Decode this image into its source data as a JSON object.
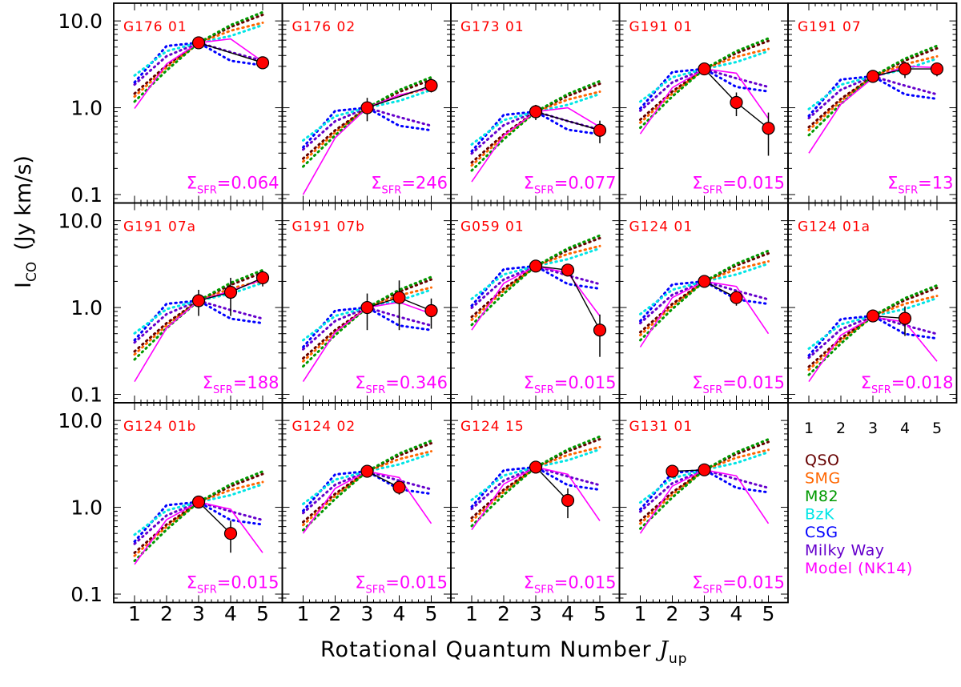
{
  "figure": {
    "ylabel_main": "I",
    "ylabel_sub": "CO",
    "ylabel_unit": "(Jy km/s)",
    "xlabel": "Rotational Quantum Number ",
    "xlabel_sym": "J",
    "xlabel_sub": "up"
  },
  "colors": {
    "panel_label": "#ff0000",
    "sfr_text": "#ff00ff",
    "points": "#ff0000",
    "data_line": "#000000",
    "model": "#ff00ff"
  },
  "sfr_symbol": "Σ",
  "sfr_sub": "SFR",
  "legend": {
    "ticks": [
      "1",
      "2",
      "3",
      "4",
      "5"
    ],
    "items": [
      {
        "label": "QSO",
        "color": "#660000"
      },
      {
        "label": "SMG",
        "color": "#ff6600"
      },
      {
        "label": "M82",
        "color": "#009900"
      },
      {
        "label": "BzK",
        "color": "#00e5e5"
      },
      {
        "label": "CSG",
        "color": "#0000ff"
      },
      {
        "label": "Milky Way",
        "color": "#6600cc"
      },
      {
        "label": "Model (NK14)",
        "color": "#ff00ff"
      }
    ]
  },
  "chart_data": {
    "type": "line",
    "title": "",
    "xlabel": "Rotational Quantum Number J_up",
    "ylabel": "I_CO (Jy km/s)",
    "xscale": "linear",
    "yscale": "log",
    "xlim": [
      0.5,
      5.5
    ],
    "ylim": [
      0.08,
      16
    ],
    "xticks": [
      "1",
      "2",
      "3",
      "4",
      "5"
    ],
    "yticks": [
      "0.1",
      "1.0",
      "10.0"
    ],
    "template_shapes": {
      "QSO": [
        0.26,
        0.55,
        1.0,
        1.52,
        2.1
      ],
      "SMG": [
        0.24,
        0.52,
        1.0,
        1.38,
        1.7
      ],
      "M82": [
        0.21,
        0.48,
        1.0,
        1.6,
        2.25
      ],
      "BzK": [
        0.42,
        0.8,
        1.0,
        1.2,
        1.6
      ],
      "CSG": [
        0.35,
        0.92,
        1.0,
        0.62,
        0.55
      ],
      "Milky Way": [
        0.33,
        0.7,
        1.0,
        0.78,
        0.62
      ]
    },
    "panels": [
      {
        "label": "G176 01",
        "sfr": "=0.064",
        "norm": 5.6,
        "data": [
          [
            3,
            5.6
          ],
          [
            5,
            3.3
          ]
        ],
        "errors": [
          0,
          0
        ],
        "model": [
          0.98,
          3.2,
          5.6,
          6.2,
          3.4
        ]
      },
      {
        "label": "G176 02",
        "sfr": "=246",
        "norm": 1.0,
        "data": [
          [
            3,
            1.0
          ],
          [
            5,
            1.8
          ]
        ],
        "errors": [
          0.3,
          0.3
        ],
        "model": [
          0.1,
          0.45,
          1.0,
          1.4,
          1.7
        ]
      },
      {
        "label": "G173 01",
        "sfr": "=0.077",
        "norm": 0.9,
        "data": [
          [
            3,
            0.9
          ],
          [
            5,
            0.55
          ]
        ],
        "errors": [
          0.18,
          0.16
        ],
        "model": [
          0.14,
          0.48,
          0.9,
          1.0,
          0.6
        ]
      },
      {
        "label": "G191 01",
        "sfr": "=0.015",
        "norm": 2.8,
        "data": [
          [
            3,
            2.8
          ],
          [
            4,
            1.15
          ],
          [
            5,
            0.58
          ]
        ],
        "errors": [
          0.25,
          0.35,
          0.3
        ],
        "model": [
          0.5,
          1.7,
          2.8,
          2.5,
          0.75
        ]
      },
      {
        "label": "G191 07",
        "sfr": "=13",
        "norm": 2.3,
        "data": [
          [
            3,
            2.3
          ],
          [
            4,
            2.8
          ],
          [
            5,
            2.8
          ]
        ],
        "errors": [
          0.2,
          0.6,
          0.5
        ],
        "model": [
          0.3,
          1.1,
          2.2,
          3.0,
          2.9
        ]
      },
      {
        "label": "G191 07a",
        "sfr": "=188",
        "norm": 1.2,
        "data": [
          [
            3,
            1.2
          ],
          [
            4,
            1.5
          ],
          [
            5,
            2.2
          ]
        ],
        "errors": [
          0.4,
          0.7,
          0.45
        ],
        "model": [
          0.14,
          0.58,
          1.2,
          1.55,
          2.1
        ]
      },
      {
        "label": "G191 07b",
        "sfr": "=0.346",
        "norm": 1.0,
        "data": [
          [
            3,
            1.0
          ],
          [
            4,
            1.3
          ],
          [
            5,
            0.92
          ]
        ],
        "errors": [
          0.45,
          0.75,
          0.35
        ],
        "model": [
          0.14,
          0.52,
          1.0,
          1.15,
          0.85
        ]
      },
      {
        "label": "G059 01",
        "sfr": "=0.015",
        "norm": 3.0,
        "data": [
          [
            3,
            3.0
          ],
          [
            4,
            2.7
          ],
          [
            5,
            0.55
          ]
        ],
        "errors": [
          0.35,
          0.25,
          0.28
        ],
        "model": [
          0.55,
          1.9,
          3.0,
          2.5,
          0.8
        ]
      },
      {
        "label": "G124 01",
        "sfr": "=0.015",
        "norm": 2.0,
        "data": [
          [
            3,
            2.0
          ],
          [
            4,
            1.3
          ]
        ],
        "errors": [
          0.15,
          0.25
        ],
        "model": [
          0.35,
          1.3,
          2.0,
          1.75,
          0.5
        ]
      },
      {
        "label": "G124 01a",
        "sfr": "=0.018",
        "norm": 0.8,
        "data": [
          [
            3,
            0.8
          ],
          [
            4,
            0.75
          ]
        ],
        "errors": [
          0.1,
          0.28
        ],
        "model": [
          0.14,
          0.48,
          0.78,
          0.68,
          0.24
        ]
      },
      {
        "label": "G124 01b",
        "sfr": "=0.015",
        "norm": 1.15,
        "data": [
          [
            3,
            1.15
          ],
          [
            4,
            0.5
          ]
        ],
        "errors": [
          0.12,
          0.2
        ],
        "model": [
          0.22,
          0.72,
          1.15,
          0.95,
          0.3
        ]
      },
      {
        "label": "G124 02",
        "sfr": "=0.015",
        "norm": 2.6,
        "data": [
          [
            3,
            2.6
          ],
          [
            4,
            1.7
          ]
        ],
        "errors": [
          0.2,
          0.3
        ],
        "model": [
          0.5,
          1.65,
          2.6,
          2.2,
          0.65
        ]
      },
      {
        "label": "G124 15",
        "sfr": "=0.015",
        "norm": 2.9,
        "data": [
          [
            3,
            2.9
          ],
          [
            4,
            1.2
          ]
        ],
        "errors": [
          0.3,
          0.45
        ],
        "model": [
          0.55,
          1.85,
          2.9,
          2.4,
          0.7
        ]
      },
      {
        "label": "G131 01",
        "sfr": "=0.015",
        "norm": 2.7,
        "data": [
          [
            2,
            2.6
          ],
          [
            3,
            2.7
          ]
        ],
        "errors": [
          0,
          0.2
        ],
        "model": [
          0.5,
          1.75,
          2.7,
          2.3,
          0.65
        ]
      }
    ]
  }
}
